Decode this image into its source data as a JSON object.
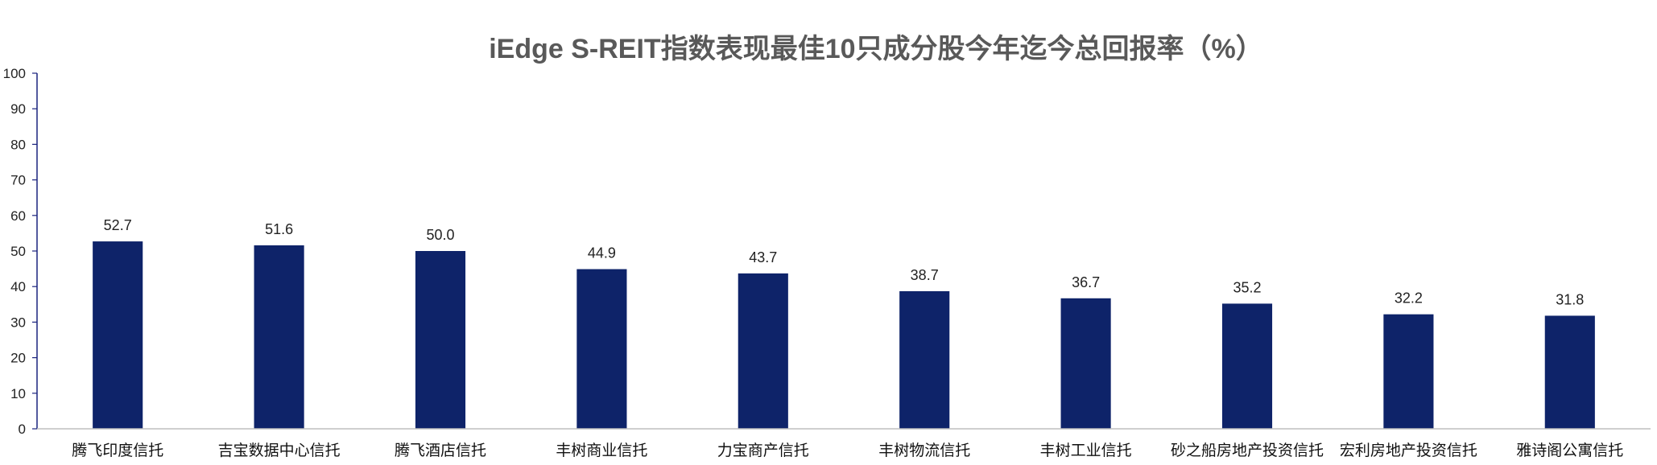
{
  "chart_data": {
    "type": "bar",
    "title": "iEdge S-REIT指数表现最佳10只成分股今年迄今总回报率（%）",
    "xlabel": "",
    "ylabel": "",
    "ylim": [
      0,
      100
    ],
    "yticks": [
      0,
      10,
      20,
      30,
      40,
      50,
      60,
      70,
      80,
      90,
      100
    ],
    "grid": false,
    "bar_color": "#0E2369",
    "categories": [
      "腾飞印度信托",
      "吉宝数据中心信托",
      "腾飞酒店信托",
      "丰树商业信托",
      "力宝商产信托",
      "丰树物流信托",
      "丰树工业信托",
      "砂之船房地产投资信托",
      "宏利房地产投资信托",
      "雅诗阁公寓信托"
    ],
    "values": [
      52.7,
      51.6,
      50.0,
      44.9,
      43.7,
      38.7,
      36.7,
      35.2,
      32.2,
      31.8
    ],
    "value_labels": [
      "52.7",
      "51.6",
      "50.0",
      "44.9",
      "43.7",
      "38.7",
      "36.7",
      "35.2",
      "32.2",
      "31.8"
    ]
  }
}
